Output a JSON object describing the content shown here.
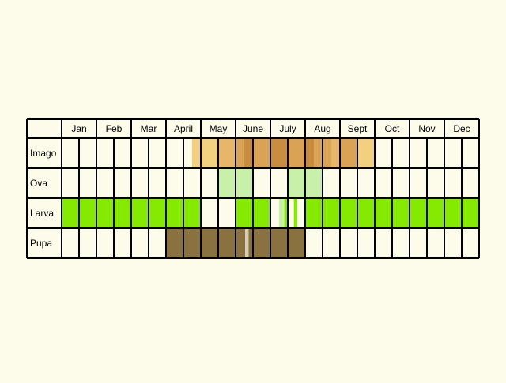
{
  "months": [
    "Jan",
    "Feb",
    "Mar",
    "April",
    "May",
    "June",
    "July",
    "Aug",
    "Sept",
    "Oct",
    "Nov",
    "Dec"
  ],
  "stages": [
    {
      "label": "Imago",
      "segments": [
        {
          "from": 7.5,
          "to": 9.0,
          "color": "#f3cf80"
        },
        {
          "from": 9.0,
          "to": 10.0,
          "color": "#e6b768"
        },
        {
          "from": 10.0,
          "to": 10.5,
          "color": "#d9a255"
        },
        {
          "from": 10.5,
          "to": 11.0,
          "color": "#c98d40"
        },
        {
          "from": 11.0,
          "to": 12.0,
          "color": "#d9a255"
        },
        {
          "from": 12.0,
          "to": 13.0,
          "color": "#c98d40"
        },
        {
          "from": 13.0,
          "to": 14.0,
          "color": "#d9a255"
        },
        {
          "from": 14.0,
          "to": 14.5,
          "color": "#c98d40"
        },
        {
          "from": 14.5,
          "to": 15.5,
          "color": "#d9a255"
        },
        {
          "from": 15.5,
          "to": 16.0,
          "color": "#e6b768"
        },
        {
          "from": 16.0,
          "to": 17.0,
          "color": "#d9a255"
        },
        {
          "from": 17.0,
          "to": 18.0,
          "color": "#f3cf80"
        }
      ]
    },
    {
      "label": "Ova",
      "segments": [
        {
          "from": 9.0,
          "to": 11.0,
          "color": "#c8f0a8"
        },
        {
          "from": 13.0,
          "to": 15.0,
          "color": "#c8f0a8"
        }
      ]
    },
    {
      "label": "Larva",
      "segments": [
        {
          "from": 0.0,
          "to": 8.0,
          "color": "#86ea00"
        },
        {
          "from": 8.0,
          "to": 9.0,
          "color": "#fdfbea"
        },
        {
          "from": 9.0,
          "to": 10.0,
          "color": "#fdfbea"
        },
        {
          "from": 10.0,
          "to": 12.0,
          "color": "#86ea00"
        },
        {
          "from": 12.5,
          "to": 12.8,
          "color": "#c8f0a8"
        },
        {
          "from": 12.8,
          "to": 13.0,
          "color": "#86ea00"
        },
        {
          "from": 13.35,
          "to": 13.55,
          "color": "#86ea00"
        },
        {
          "from": 14.0,
          "to": 24.0,
          "color": "#86ea00"
        }
      ]
    },
    {
      "label": "Pupa",
      "segments": [
        {
          "from": 6.0,
          "to": 10.55,
          "color": "#8a7240"
        },
        {
          "from": 10.55,
          "to": 10.75,
          "color": "#d6ccb0"
        },
        {
          "from": 10.75,
          "to": 14.0,
          "color": "#8a7240"
        }
      ]
    }
  ],
  "colors": {
    "background": "#fdfbea",
    "grid": "#000000",
    "imago": "#e6b768",
    "ova": "#c8f0a8",
    "larva": "#86ea00",
    "pupa": "#8a7240"
  }
}
